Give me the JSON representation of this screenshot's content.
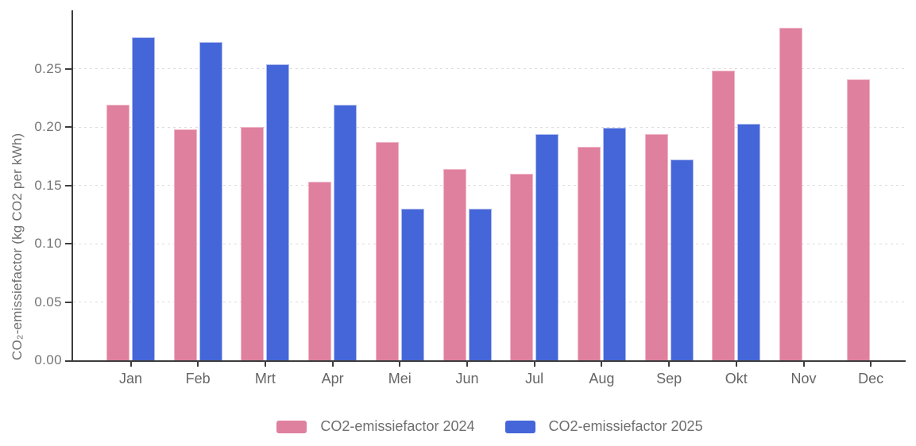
{
  "chart_data": {
    "type": "bar",
    "title": "",
    "xlabel": "",
    "ylabel": "CO₂-emissiefactor (kg CO2 per kWh)",
    "categories": [
      "Jan",
      "Feb",
      "Mrt",
      "Apr",
      "Mei",
      "Jun",
      "Jul",
      "Aug",
      "Sep",
      "Okt",
      "Nov",
      "Dec"
    ],
    "series": [
      {
        "name": "CO2-emissiefactor 2024",
        "color": "#df809e",
        "border_color": "#f1b6c6",
        "values": [
          0.219,
          0.198,
          0.2,
          0.153,
          0.187,
          0.164,
          0.16,
          0.183,
          0.194,
          0.248,
          0.285,
          0.241
        ]
      },
      {
        "name": "CO2-emissiefactor 2025",
        "color": "#4566d8",
        "border_color": "#aebbee",
        "values": [
          0.277,
          0.273,
          0.254,
          0.219,
          0.13,
          0.13,
          0.194,
          0.199,
          0.172,
          0.203,
          null,
          null
        ]
      }
    ],
    "yticks": [
      0,
      0.05,
      0.1,
      0.15,
      0.2,
      0.25
    ],
    "ytick_labels": [
      "0.00",
      "0.05",
      "0.10",
      "0.15",
      "0.20",
      "0.25"
    ],
    "ylim": [
      0,
      0.3
    ],
    "grid": "horizontal-dashed",
    "legend_position": "bottom"
  },
  "colors": {
    "axis": "#3d3d3d",
    "grid": "#dcdcdc",
    "tick_text": "#757575",
    "background": "#ffffff"
  }
}
